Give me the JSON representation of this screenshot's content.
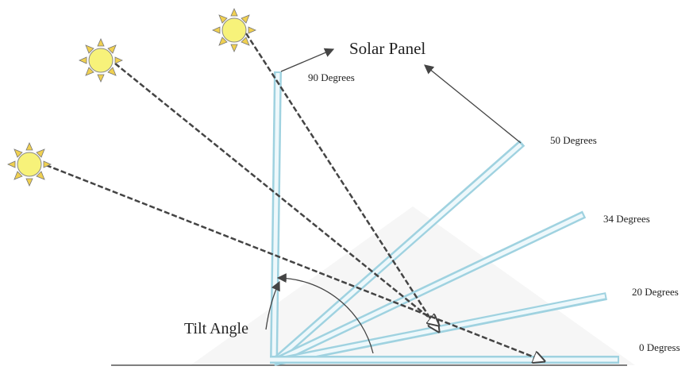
{
  "title": "Solar Panel",
  "tilt_label": "Tilt Angle",
  "angles": [
    "90 Degrees",
    "50 Degrees",
    "34 Degrees",
    "20 Degrees",
    "0 Degress"
  ]
}
